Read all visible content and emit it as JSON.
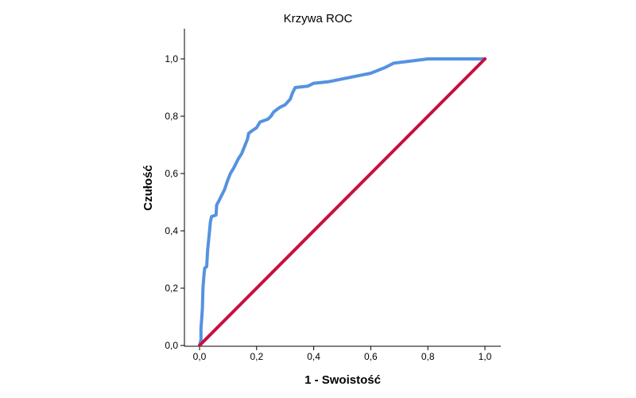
{
  "chart_data": {
    "type": "line",
    "title": "Krzywa ROC",
    "xlabel": "1 - Swoistość",
    "ylabel": "Czułość",
    "xlim": [
      0,
      1
    ],
    "ylim": [
      0,
      1
    ],
    "grid": false,
    "x_ticks": [
      "0,0",
      "0,2",
      "0,4",
      "0,6",
      "0,8",
      "1,0"
    ],
    "y_ticks": [
      "0,0",
      "0,2",
      "0,4",
      "0,6",
      "0,8",
      "1,0"
    ],
    "series": [
      {
        "color": "#5592E0",
        "points": [
          [
            0.0,
            0.0
          ],
          [
            0.005,
            0.02
          ],
          [
            0.005,
            0.06
          ],
          [
            0.008,
            0.1
          ],
          [
            0.01,
            0.13
          ],
          [
            0.012,
            0.2
          ],
          [
            0.015,
            0.24
          ],
          [
            0.018,
            0.27
          ],
          [
            0.025,
            0.275
          ],
          [
            0.028,
            0.33
          ],
          [
            0.032,
            0.37
          ],
          [
            0.035,
            0.4
          ],
          [
            0.038,
            0.43
          ],
          [
            0.042,
            0.45
          ],
          [
            0.058,
            0.455
          ],
          [
            0.06,
            0.49
          ],
          [
            0.068,
            0.505
          ],
          [
            0.078,
            0.525
          ],
          [
            0.088,
            0.545
          ],
          [
            0.098,
            0.575
          ],
          [
            0.108,
            0.6
          ],
          [
            0.12,
            0.62
          ],
          [
            0.135,
            0.65
          ],
          [
            0.148,
            0.67
          ],
          [
            0.16,
            0.7
          ],
          [
            0.168,
            0.72
          ],
          [
            0.172,
            0.74
          ],
          [
            0.185,
            0.75
          ],
          [
            0.2,
            0.76
          ],
          [
            0.212,
            0.78
          ],
          [
            0.24,
            0.79
          ],
          [
            0.25,
            0.8
          ],
          [
            0.26,
            0.815
          ],
          [
            0.28,
            0.83
          ],
          [
            0.3,
            0.84
          ],
          [
            0.318,
            0.86
          ],
          [
            0.325,
            0.88
          ],
          [
            0.335,
            0.9
          ],
          [
            0.38,
            0.905
          ],
          [
            0.4,
            0.915
          ],
          [
            0.45,
            0.92
          ],
          [
            0.5,
            0.93
          ],
          [
            0.55,
            0.94
          ],
          [
            0.6,
            0.95
          ],
          [
            0.65,
            0.97
          ],
          [
            0.68,
            0.985
          ],
          [
            0.72,
            0.99
          ],
          [
            0.8,
            1.0
          ],
          [
            1.0,
            1.0
          ]
        ]
      },
      {
        "color": "#C8103E",
        "points": [
          [
            0,
            0
          ],
          [
            1,
            1
          ]
        ]
      }
    ]
  }
}
